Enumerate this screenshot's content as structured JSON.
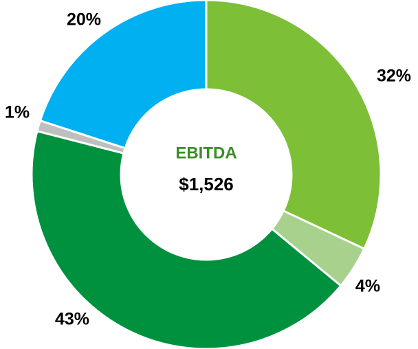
{
  "chart_data": {
    "type": "donut",
    "values": [
      32,
      4,
      43,
      1,
      20
    ],
    "value_labels": [
      "32%",
      "4%",
      "43%",
      "1%",
      "20%"
    ],
    "colors": [
      "#7dbf36",
      "#a9d18e",
      "#00913f",
      "#bfbfbf",
      "#00b0f0"
    ],
    "center_text": [
      "EBITDA",
      "$1,526"
    ],
    "center_colors": [
      "#3b8c2a",
      "#000000"
    ]
  }
}
